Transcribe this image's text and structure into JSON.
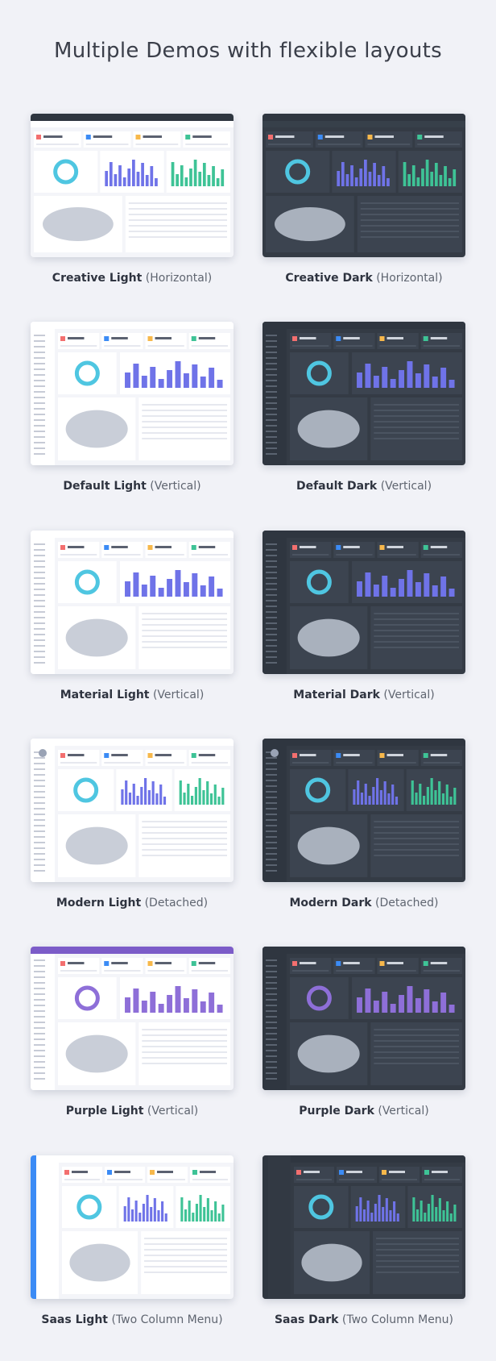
{
  "title": "Multiple Demos with flexible layouts",
  "demos": [
    {
      "name": "Creative Light",
      "variant": "(Horizontal)"
    },
    {
      "name": "Creative Dark",
      "variant": "(Horizontal)"
    },
    {
      "name": "Default Light",
      "variant": "(Vertical)"
    },
    {
      "name": "Default Dark",
      "variant": "(Vertical)"
    },
    {
      "name": "Material Light",
      "variant": "(Vertical)"
    },
    {
      "name": "Material Dark",
      "variant": "(Vertical)"
    },
    {
      "name": "Modern Light",
      "variant": "(Detached)"
    },
    {
      "name": "Modern Dark",
      "variant": "(Detached)"
    },
    {
      "name": "Purple Light",
      "variant": "(Vertical)"
    },
    {
      "name": "Purple Dark",
      "variant": "(Vertical)"
    },
    {
      "name": "Saas Light",
      "variant": "(Two Column Menu)"
    },
    {
      "name": "Saas Dark",
      "variant": "(Two Column Menu)"
    }
  ]
}
